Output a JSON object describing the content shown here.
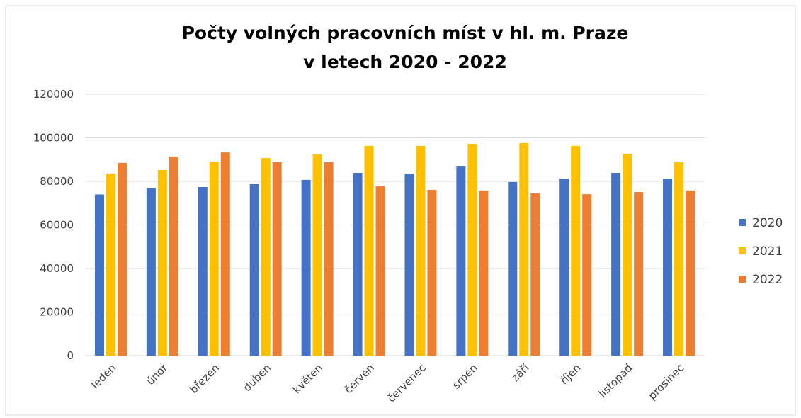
{
  "chart_data": {
    "type": "bar",
    "title": [
      "Počty volných pracovních míst v hl. m. Praze",
      "v letech 2020 - 2022"
    ],
    "categories": [
      "leden",
      "únor",
      "březen",
      "duben",
      "květen",
      "červen",
      "červenec",
      "srpen",
      "září",
      "říjen",
      "listopad",
      "prosinec"
    ],
    "series": [
      {
        "name": "2020",
        "color": "#4472c4",
        "values": [
          74000,
          77000,
          77400,
          78700,
          80700,
          83900,
          83600,
          86800,
          79700,
          81300,
          83900,
          81300
        ]
      },
      {
        "name": "2021",
        "color": "#ffc000",
        "values": [
          83600,
          85200,
          89100,
          90700,
          92400,
          96300,
          96300,
          97200,
          97600,
          96300,
          92700,
          88800
        ]
      },
      {
        "name": "2022",
        "color": "#ed7d31",
        "values": [
          88500,
          91400,
          93300,
          88800,
          88800,
          77700,
          76100,
          75800,
          74500,
          74100,
          75100,
          75800
        ]
      }
    ],
    "ylim": [
      0,
      120000
    ],
    "yticks": [
      0,
      20000,
      40000,
      60000,
      80000,
      100000,
      120000
    ],
    "grid": true,
    "legend": "right"
  }
}
